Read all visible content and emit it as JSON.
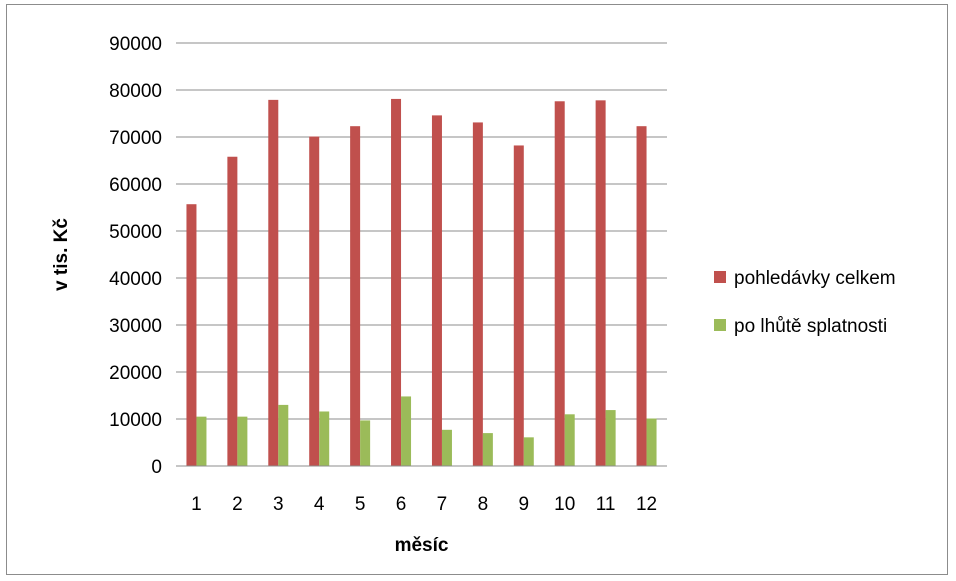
{
  "chart_data": {
    "type": "bar",
    "xlabel": "měsíc",
    "ylabel": "v tis. Kč",
    "ylim": [
      0,
      90000
    ],
    "yticks": [
      0,
      10000,
      20000,
      30000,
      40000,
      50000,
      60000,
      70000,
      80000,
      90000
    ],
    "categories": [
      "1",
      "2",
      "3",
      "4",
      "5",
      "6",
      "7",
      "8",
      "9",
      "10",
      "11",
      "12"
    ],
    "series": [
      {
        "name": "pohledávky celkem",
        "color": "#c0504d",
        "values": [
          55700,
          65800,
          77900,
          70100,
          72300,
          78100,
          74600,
          73100,
          68200,
          77600,
          77800,
          72300
        ]
      },
      {
        "name": "po lhůtě splatnosti",
        "color": "#9bbb59",
        "values": [
          10500,
          10500,
          13000,
          11600,
          9700,
          14800,
          7700,
          7000,
          6100,
          11000,
          11900,
          10100
        ]
      }
    ],
    "grid": "horizontal",
    "legend_position": "right"
  }
}
